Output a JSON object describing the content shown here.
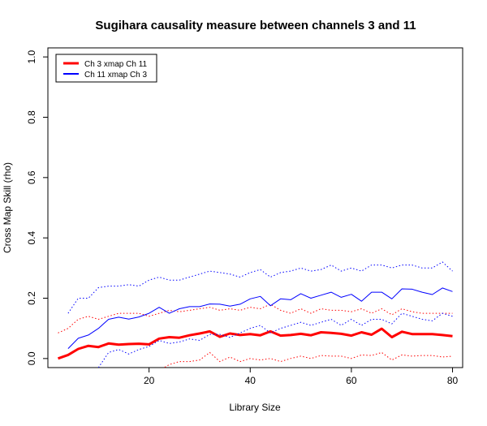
{
  "chart_data": {
    "type": "line",
    "title": "Sugihara causality measure between channels  3 and 11",
    "xlabel": "Library Size",
    "ylabel": "Cross Map Skill (rho)",
    "xlim": [
      0,
      82
    ],
    "ylim": [
      -0.03,
      1.03
    ],
    "xticks": [
      20,
      40,
      60,
      80
    ],
    "yticks": [
      0.0,
      0.2,
      0.4,
      0.6,
      0.8,
      1.0
    ],
    "xtick_labels": [
      "20",
      "40",
      "60",
      "80"
    ],
    "ytick_labels": [
      "0.0",
      "0.2",
      "0.4",
      "0.6",
      "0.8",
      "1.0"
    ],
    "grid": false,
    "legend_position": "top-left",
    "series": [
      {
        "name": "Ch 3 xmap Ch 11",
        "color": "#ff0000",
        "style": "thick",
        "x": [
          2,
          4,
          6,
          8,
          10,
          12,
          14,
          16,
          18,
          20,
          22,
          24,
          26,
          28,
          30,
          32,
          34,
          36,
          38,
          40,
          42,
          44,
          46,
          48,
          50,
          52,
          54,
          56,
          58,
          60,
          62,
          64,
          66,
          68,
          70,
          72,
          74,
          76,
          78,
          80
        ],
        "mean": [
          0.0,
          0.012,
          0.032,
          0.042,
          0.038,
          0.05,
          0.046,
          0.048,
          0.049,
          0.047,
          0.066,
          0.071,
          0.069,
          0.077,
          0.083,
          0.09,
          0.072,
          0.083,
          0.078,
          0.081,
          0.077,
          0.09,
          0.076,
          0.078,
          0.082,
          0.077,
          0.087,
          0.085,
          0.082,
          0.076,
          0.087,
          0.079,
          0.099,
          0.071,
          0.089,
          0.081,
          0.081,
          0.081,
          0.078,
          0.074
        ],
        "upper": [
          0.085,
          0.1,
          0.13,
          0.14,
          0.13,
          0.14,
          0.15,
          0.15,
          0.15,
          0.14,
          0.15,
          0.16,
          0.155,
          0.16,
          0.165,
          0.17,
          0.16,
          0.165,
          0.16,
          0.17,
          0.165,
          0.18,
          0.16,
          0.15,
          0.165,
          0.15,
          0.165,
          0.16,
          0.16,
          0.155,
          0.165,
          0.15,
          0.165,
          0.145,
          0.165,
          0.155,
          0.15,
          0.15,
          0.15,
          0.15
        ],
        "lower": [
          null,
          null,
          null,
          null,
          null,
          null,
          null,
          null,
          null,
          null,
          -0.04,
          -0.02,
          -0.01,
          -0.01,
          -0.005,
          0.02,
          -0.01,
          0.005,
          -0.01,
          0.0,
          -0.005,
          0.0,
          -0.01,
          0.0,
          0.008,
          0.0,
          0.01,
          0.008,
          0.008,
          0.0,
          0.012,
          0.01,
          0.02,
          -0.005,
          0.012,
          0.008,
          0.01,
          0.01,
          0.005,
          0.008
        ]
      },
      {
        "name": "Ch 11  xmap Ch 3",
        "color": "#0000ff",
        "style": "thin",
        "x": [
          4,
          6,
          8,
          10,
          12,
          14,
          16,
          18,
          20,
          22,
          24,
          26,
          28,
          30,
          32,
          34,
          36,
          38,
          40,
          42,
          44,
          46,
          48,
          50,
          52,
          54,
          56,
          58,
          60,
          62,
          64,
          66,
          68,
          70,
          72,
          74,
          76,
          78,
          80
        ],
        "mean": [
          0.033,
          0.067,
          0.078,
          0.1,
          0.13,
          0.137,
          0.131,
          0.138,
          0.15,
          0.17,
          0.15,
          0.165,
          0.172,
          0.172,
          0.181,
          0.18,
          0.174,
          0.18,
          0.198,
          0.206,
          0.175,
          0.198,
          0.195,
          0.215,
          0.2,
          0.21,
          0.22,
          0.203,
          0.213,
          0.19,
          0.22,
          0.22,
          0.198,
          0.231,
          0.23,
          0.22,
          0.212,
          0.234,
          0.222
        ],
        "upper": [
          0.15,
          0.2,
          0.2,
          0.235,
          0.24,
          0.24,
          0.245,
          0.24,
          0.26,
          0.27,
          0.26,
          0.26,
          0.27,
          0.28,
          0.29,
          0.285,
          0.28,
          0.27,
          0.285,
          0.295,
          0.27,
          0.285,
          0.29,
          0.3,
          0.29,
          0.295,
          0.31,
          0.29,
          0.3,
          0.29,
          0.31,
          0.31,
          0.3,
          0.31,
          0.31,
          0.3,
          0.3,
          0.32,
          0.29
        ],
        "lower": [
          null,
          null,
          null,
          -0.03,
          0.02,
          0.03,
          0.015,
          0.03,
          0.04,
          0.06,
          0.05,
          0.055,
          0.065,
          0.06,
          0.08,
          0.08,
          0.07,
          0.085,
          0.1,
          0.11,
          0.085,
          0.1,
          0.11,
          0.12,
          0.11,
          0.12,
          0.13,
          0.11,
          0.13,
          0.11,
          0.13,
          0.13,
          0.115,
          0.15,
          0.14,
          0.13,
          0.125,
          0.15,
          0.14
        ]
      }
    ]
  }
}
